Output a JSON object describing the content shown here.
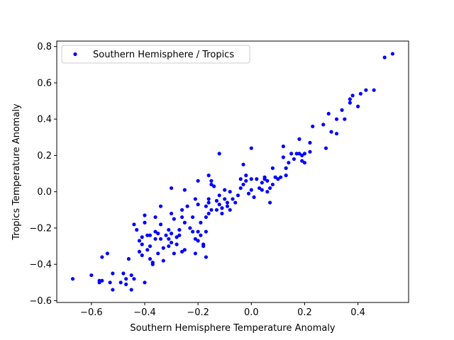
{
  "chart_data": {
    "type": "scatter",
    "title": "",
    "xlabel": "Southern Hemisphere Temperature Anomaly",
    "ylabel": "Tropics Temperature Anomaly",
    "xlim": [
      -0.73,
      0.59
    ],
    "ylim": [
      -0.61,
      0.83
    ],
    "grid": false,
    "legend_position": "top-left",
    "xticks": [
      -0.6,
      -0.4,
      -0.2,
      0.0,
      0.2,
      0.4
    ],
    "xtick_labels": [
      "−0.6",
      "−0.4",
      "−0.2",
      "0.0",
      "0.2",
      "0.4"
    ],
    "yticks": [
      -0.6,
      -0.4,
      -0.2,
      0.0,
      0.2,
      0.4,
      0.6,
      0.8
    ],
    "ytick_labels": [
      "−0.6",
      "−0.4",
      "−0.2",
      "0.0",
      "0.2",
      "0.4",
      "0.6",
      "0.8"
    ],
    "series": [
      {
        "name": "Southern Hemisphere / Tropics",
        "color": "#0000ff",
        "marker": "circle",
        "points": [
          [
            -0.67,
            -0.48
          ],
          [
            -0.6,
            -0.46
          ],
          [
            -0.57,
            -0.49
          ],
          [
            -0.57,
            -0.5
          ],
          [
            -0.56,
            -0.49
          ],
          [
            -0.56,
            -0.36
          ],
          [
            -0.54,
            -0.34
          ],
          [
            -0.53,
            -0.5
          ],
          [
            -0.52,
            -0.45
          ],
          [
            -0.52,
            -0.54
          ],
          [
            -0.49,
            -0.5
          ],
          [
            -0.48,
            -0.45
          ],
          [
            -0.47,
            -0.51
          ],
          [
            -0.47,
            -0.48
          ],
          [
            -0.46,
            -0.37
          ],
          [
            -0.45,
            -0.46
          ],
          [
            -0.45,
            -0.54
          ],
          [
            -0.44,
            -0.48
          ],
          [
            -0.44,
            -0.18
          ],
          [
            -0.43,
            -0.21
          ],
          [
            -0.42,
            -0.33
          ],
          [
            -0.42,
            -0.27
          ],
          [
            -0.41,
            -0.25
          ],
          [
            -0.41,
            -0.29
          ],
          [
            -0.41,
            -0.35
          ],
          [
            -0.4,
            -0.13
          ],
          [
            -0.4,
            -0.5
          ],
          [
            -0.4,
            -0.17
          ],
          [
            -0.39,
            -0.24
          ],
          [
            -0.39,
            -0.32
          ],
          [
            -0.38,
            -0.37
          ],
          [
            -0.38,
            -0.24
          ],
          [
            -0.38,
            -0.3
          ],
          [
            -0.37,
            -0.39
          ],
          [
            -0.37,
            -0.4
          ],
          [
            -0.36,
            -0.22
          ],
          [
            -0.36,
            -0.26
          ],
          [
            -0.36,
            -0.14
          ],
          [
            -0.35,
            -0.23
          ],
          [
            -0.35,
            -0.34
          ],
          [
            -0.34,
            -0.08
          ],
          [
            -0.34,
            -0.18
          ],
          [
            -0.34,
            -0.26
          ],
          [
            -0.33,
            -0.38
          ],
          [
            -0.33,
            -0.31
          ],
          [
            -0.32,
            -0.24
          ],
          [
            -0.31,
            -0.21
          ],
          [
            -0.31,
            -0.3
          ],
          [
            -0.31,
            -0.26
          ],
          [
            -0.3,
            -0.23
          ],
          [
            -0.3,
            -0.12
          ],
          [
            -0.3,
            -0.28
          ],
          [
            -0.3,
            0.02
          ],
          [
            -0.29,
            -0.34
          ],
          [
            -0.29,
            -0.15
          ],
          [
            -0.28,
            -0.29
          ],
          [
            -0.28,
            -0.25
          ],
          [
            -0.27,
            -0.24
          ],
          [
            -0.27,
            -0.21
          ],
          [
            -0.26,
            -0.1
          ],
          [
            -0.26,
            -0.33
          ],
          [
            -0.26,
            -0.14
          ],
          [
            -0.25,
            -0.17
          ],
          [
            -0.25,
            0.01
          ],
          [
            -0.25,
            -0.32
          ],
          [
            -0.24,
            -0.08
          ],
          [
            -0.23,
            -0.2
          ],
          [
            -0.22,
            -0.22
          ],
          [
            -0.22,
            -0.14
          ],
          [
            -0.21,
            -0.04
          ],
          [
            -0.21,
            -0.26
          ],
          [
            -0.21,
            -0.34
          ],
          [
            -0.2,
            -0.22
          ],
          [
            -0.2,
            -0.27
          ],
          [
            -0.2,
            0.06
          ],
          [
            -0.2,
            -0.07
          ],
          [
            -0.19,
            -0.17
          ],
          [
            -0.19,
            -0.24
          ],
          [
            -0.18,
            -0.29
          ],
          [
            -0.18,
            -0.3
          ],
          [
            -0.17,
            -0.14
          ],
          [
            -0.17,
            -0.08
          ],
          [
            -0.17,
            -0.22
          ],
          [
            -0.17,
            -0.36
          ],
          [
            -0.16,
            -0.06
          ],
          [
            -0.16,
            -0.12
          ],
          [
            -0.16,
            -0.04
          ],
          [
            -0.16,
            0.09
          ],
          [
            -0.15,
            0.06
          ],
          [
            -0.15,
            0.04
          ],
          [
            -0.15,
            -0.1
          ],
          [
            -0.14,
            0.03
          ],
          [
            -0.13,
            -0.05
          ],
          [
            -0.13,
            -0.1
          ],
          [
            -0.12,
            0.21
          ],
          [
            -0.12,
            -0.02
          ],
          [
            -0.12,
            -0.07
          ],
          [
            -0.11,
            -0.09
          ],
          [
            -0.11,
            -0.12
          ],
          [
            -0.1,
            0.01
          ],
          [
            -0.1,
            -0.04
          ],
          [
            -0.09,
            -0.08
          ],
          [
            -0.09,
            -0.06
          ],
          [
            -0.08,
            0.0
          ],
          [
            -0.08,
            -0.1
          ],
          [
            -0.07,
            -0.04
          ],
          [
            -0.06,
            -0.06
          ],
          [
            -0.05,
            -0.02
          ],
          [
            -0.04,
            0.02
          ],
          [
            -0.04,
            0.07
          ],
          [
            -0.03,
            0.15
          ],
          [
            -0.03,
            0.04
          ],
          [
            -0.02,
            0.09
          ],
          [
            -0.02,
            0.06
          ],
          [
            -0.01,
            -0.01
          ],
          [
            0.0,
            0.24
          ],
          [
            0.0,
            0.07
          ],
          [
            0.0,
            0.01
          ],
          [
            0.01,
            -0.03
          ],
          [
            0.02,
            0.07
          ],
          [
            0.03,
            0.02
          ],
          [
            0.04,
            0.05
          ],
          [
            0.04,
            0.01
          ],
          [
            0.05,
            0.07
          ],
          [
            0.05,
            0.08
          ],
          [
            0.06,
            0.06
          ],
          [
            0.06,
            0.0
          ],
          [
            0.07,
            0.02
          ],
          [
            0.07,
            -0.06
          ],
          [
            0.08,
            0.04
          ],
          [
            0.08,
            0.13
          ],
          [
            0.09,
            0.08
          ],
          [
            0.1,
            0.07
          ],
          [
            0.11,
            0.08
          ],
          [
            0.12,
            0.19
          ],
          [
            0.12,
            0.25
          ],
          [
            0.13,
            0.13
          ],
          [
            0.13,
            0.09
          ],
          [
            0.14,
            0.16
          ],
          [
            0.15,
            0.21
          ],
          [
            0.16,
            0.18
          ],
          [
            0.17,
            0.21
          ],
          [
            0.18,
            0.21
          ],
          [
            0.18,
            0.29
          ],
          [
            0.19,
            0.2
          ],
          [
            0.19,
            0.17
          ],
          [
            0.2,
            0.21
          ],
          [
            0.2,
            0.16
          ],
          [
            0.22,
            0.27
          ],
          [
            0.22,
            0.22
          ],
          [
            0.23,
            0.36
          ],
          [
            0.27,
            0.37
          ],
          [
            0.28,
            0.24
          ],
          [
            0.29,
            0.43
          ],
          [
            0.3,
            0.33
          ],
          [
            0.32,
            0.32
          ],
          [
            0.32,
            0.4
          ],
          [
            0.34,
            0.45
          ],
          [
            0.35,
            0.4
          ],
          [
            0.37,
            0.49
          ],
          [
            0.37,
            0.51
          ],
          [
            0.38,
            0.53
          ],
          [
            0.4,
            0.47
          ],
          [
            0.41,
            0.54
          ],
          [
            0.43,
            0.56
          ],
          [
            0.46,
            0.56
          ],
          [
            0.5,
            0.74
          ],
          [
            0.53,
            0.76
          ]
        ]
      }
    ]
  }
}
